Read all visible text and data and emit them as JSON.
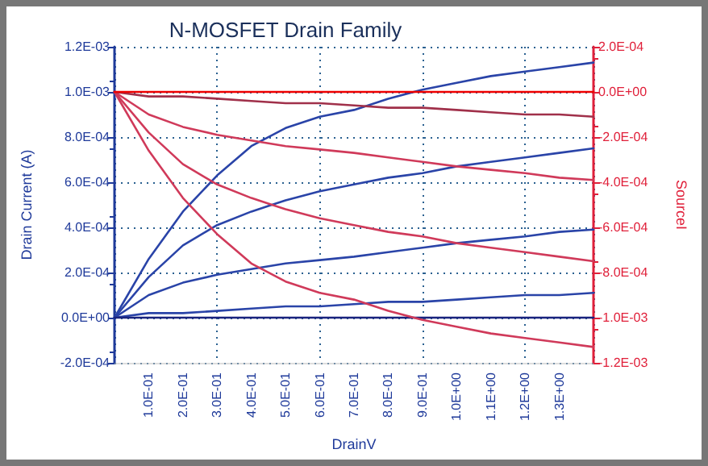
{
  "chart_data": {
    "type": "line",
    "title": "N-MOSFET Drain Family",
    "xlabel": "DrainV",
    "ylabel": "Drain Current (A)",
    "y2label": "SourceI",
    "x": [
      0,
      0.1,
      0.2,
      0.3,
      0.4,
      0.5,
      0.6,
      0.7,
      0.8,
      0.9,
      1.0,
      1.1,
      1.2,
      1.3,
      1.4
    ],
    "series": [
      {
        "color": "#2a44a8",
        "values": [
          0,
          0.00026,
          0.00047,
          0.00063,
          0.00076,
          0.00084,
          0.00089,
          0.00092,
          0.00097,
          0.00101,
          0.00104,
          0.00107,
          0.00109,
          0.00111,
          0.00113
        ]
      },
      {
        "color": "#2a44a8",
        "values": [
          0,
          0.00018,
          0.00032,
          0.00041,
          0.00047,
          0.00052,
          0.00056,
          0.00059,
          0.00062,
          0.00064,
          0.00067,
          0.00069,
          0.00071,
          0.00073,
          0.00075
        ]
      },
      {
        "color": "#2a44a8",
        "values": [
          0,
          0.0001,
          0.000155,
          0.00019,
          0.000215,
          0.00024,
          0.000255,
          0.00027,
          0.00029,
          0.00031,
          0.00033,
          0.000345,
          0.00036,
          0.00038,
          0.00039
        ]
      },
      {
        "color": "#2a44a8",
        "values": [
          0,
          2e-05,
          2e-05,
          3e-05,
          4e-05,
          5e-05,
          5e-05,
          6e-05,
          7e-05,
          7e-05,
          8e-05,
          9e-05,
          0.0001,
          0.0001,
          0.00011
        ]
      },
      {
        "color": "#1a237e",
        "values": [
          0,
          0,
          0,
          0,
          0,
          0,
          0,
          0,
          0,
          0,
          0,
          0,
          0,
          0,
          0
        ]
      },
      {
        "color": "#d03a5a",
        "axis": "y2",
        "values": [
          0,
          -0.00026,
          -0.00047,
          -0.00063,
          -0.00076,
          -0.00084,
          -0.00089,
          -0.00092,
          -0.00097,
          -0.00101,
          -0.00104,
          -0.00107,
          -0.00109,
          -0.00111,
          -0.00113
        ]
      },
      {
        "color": "#d03a5a",
        "axis": "y2",
        "values": [
          0,
          -0.00018,
          -0.00032,
          -0.00041,
          -0.00047,
          -0.00052,
          -0.00056,
          -0.00059,
          -0.00062,
          -0.00064,
          -0.00067,
          -0.00069,
          -0.00071,
          -0.00073,
          -0.00075
        ]
      },
      {
        "color": "#d03a5a",
        "axis": "y2",
        "values": [
          0,
          -0.0001,
          -0.000155,
          -0.00019,
          -0.000215,
          -0.00024,
          -0.000255,
          -0.00027,
          -0.00029,
          -0.00031,
          -0.00033,
          -0.000345,
          -0.00036,
          -0.00038,
          -0.00039
        ]
      },
      {
        "color": "#a0304a",
        "axis": "y2",
        "values": [
          0,
          -2e-05,
          -2e-05,
          -3e-05,
          -4e-05,
          -5e-05,
          -5e-05,
          -6e-05,
          -7e-05,
          -7e-05,
          -8e-05,
          -9e-05,
          -0.0001,
          -0.0001,
          -0.00011
        ]
      },
      {
        "color": "#ee0000",
        "axis": "y2",
        "values": [
          0,
          0,
          0,
          0,
          0,
          0,
          0,
          0,
          0,
          0,
          0,
          0,
          0,
          0,
          0
        ]
      }
    ],
    "xlim": [
      0,
      1.4
    ],
    "xticks": [
      {
        "value": 0.1,
        "label": "1.0E-01"
      },
      {
        "value": 0.2,
        "label": "2.0E-01"
      },
      {
        "value": 0.3,
        "label": "3.0E-01"
      },
      {
        "value": 0.4,
        "label": "4.0E-01"
      },
      {
        "value": 0.5,
        "label": "5.0E-01"
      },
      {
        "value": 0.6,
        "label": "6.0E-01"
      },
      {
        "value": 0.7,
        "label": "7.0E-01"
      },
      {
        "value": 0.8,
        "label": "8.0E-01"
      },
      {
        "value": 0.9,
        "label": "9.0E-01"
      },
      {
        "value": 1.0,
        "label": "1.0E+00"
      },
      {
        "value": 1.1,
        "label": "1.1E+00"
      },
      {
        "value": 1.2,
        "label": "1.2E+00"
      },
      {
        "value": 1.3,
        "label": "1.3E+00"
      }
    ],
    "ylim": [
      -0.0002,
      0.0012
    ],
    "yticks": [
      {
        "value": -0.0002,
        "label": "-2.0E-04"
      },
      {
        "value": 0,
        "label": "0.0E+00"
      },
      {
        "value": 0.0002,
        "label": "2.0E-04"
      },
      {
        "value": 0.0004,
        "label": "4.0E-04"
      },
      {
        "value": 0.0006,
        "label": "6.0E-04"
      },
      {
        "value": 0.0008,
        "label": "8.0E-04"
      },
      {
        "value": 0.001,
        "label": "1.0E-03"
      },
      {
        "value": 0.0012,
        "label": "1.2E-03"
      }
    ],
    "y2lim": [
      -0.0012,
      0.0002
    ],
    "y2ticks": [
      {
        "value": -0.0012,
        "label": "-1.2E-03"
      },
      {
        "value": -0.001,
        "label": "-1.0E-03"
      },
      {
        "value": -0.0008,
        "label": "-8.0E-04"
      },
      {
        "value": -0.0006,
        "label": "-6.0E-04"
      },
      {
        "value": -0.0004,
        "label": "-4.0E-04"
      },
      {
        "value": -0.0002,
        "label": "-2.0E-04"
      },
      {
        "value": 0,
        "label": "0.0E+00"
      },
      {
        "value": 0.0002,
        "label": "2.0E-04"
      }
    ],
    "grid": true,
    "marker": "none",
    "line_style": "solid"
  }
}
